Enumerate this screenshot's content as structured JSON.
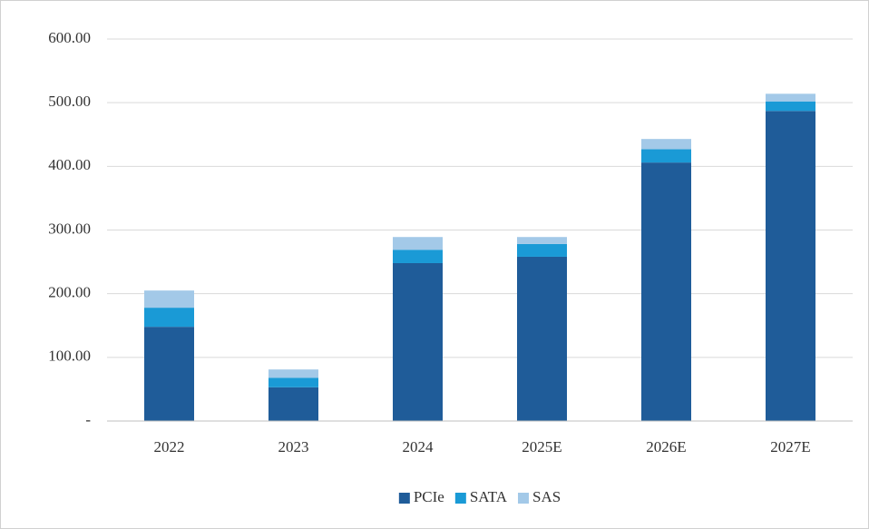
{
  "chart_data": {
    "type": "stacked_bar",
    "categories": [
      "2022",
      "2023",
      "2024",
      "2025E",
      "2026E",
      "2027E"
    ],
    "series": [
      {
        "name": "PCIe",
        "color": "#1f5c99",
        "values": [
          148,
          53,
          248,
          258,
          406,
          487
        ]
      },
      {
        "name": "SATA",
        "color": "#1a9ad6",
        "values": [
          30,
          15,
          21,
          20,
          21,
          15
        ]
      },
      {
        "name": "SAS",
        "color": "#a3c9e8",
        "values": [
          27,
          13,
          20,
          11,
          16,
          12
        ]
      }
    ],
    "ylim": [
      0,
      600
    ],
    "yticks": [
      {
        "value": 0,
        "label": "-"
      },
      {
        "value": 100,
        "label": "100.00"
      },
      {
        "value": 200,
        "label": "200.00"
      },
      {
        "value": 300,
        "label": "300.00"
      },
      {
        "value": 400,
        "label": "400.00"
      },
      {
        "value": 500,
        "label": "500.00"
      },
      {
        "value": 600,
        "label": "600.00"
      }
    ],
    "grid": true,
    "legend": "bottom"
  }
}
